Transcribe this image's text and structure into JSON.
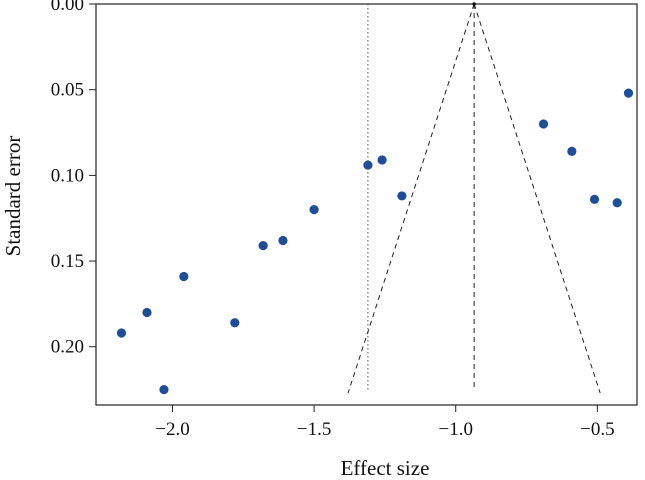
{
  "chart_data": {
    "type": "scatter",
    "title": "",
    "xlabel": "Effect size",
    "ylabel": "Standard error",
    "xlim": [
      -2.27,
      -0.36
    ],
    "ylim": [
      0.0,
      0.234
    ],
    "y_reversed": true,
    "x_ticks": [
      -2.0,
      -1.5,
      -1.0,
      -0.5
    ],
    "x_tick_labels": [
      "−2.0",
      "−1.5",
      "−1.0",
      "−0.5"
    ],
    "y_ticks": [
      0.0,
      0.05,
      0.1,
      0.15,
      0.2
    ],
    "y_tick_labels": [
      "0.00",
      "0.05",
      "0.10",
      "0.15",
      "0.20"
    ],
    "grid": false,
    "point_color": "#1f4e99",
    "series": [
      {
        "name": "studies",
        "points": [
          {
            "x": -2.18,
            "y": 0.192
          },
          {
            "x": -2.09,
            "y": 0.18
          },
          {
            "x": -2.03,
            "y": 0.225
          },
          {
            "x": -1.96,
            "y": 0.159
          },
          {
            "x": -1.78,
            "y": 0.186
          },
          {
            "x": -1.68,
            "y": 0.141
          },
          {
            "x": -1.61,
            "y": 0.138
          },
          {
            "x": -1.5,
            "y": 0.12
          },
          {
            "x": -1.31,
            "y": 0.094
          },
          {
            "x": -1.26,
            "y": 0.091
          },
          {
            "x": -1.19,
            "y": 0.112
          },
          {
            "x": -0.69,
            "y": 0.07
          },
          {
            "x": -0.59,
            "y": 0.086
          },
          {
            "x": -0.51,
            "y": 0.114
          },
          {
            "x": -0.43,
            "y": 0.116
          },
          {
            "x": -0.39,
            "y": 0.052
          }
        ]
      }
    ],
    "reference_lines": {
      "funnel_apex": {
        "x": -0.935,
        "y": 0.0
      },
      "funnel_left_base": {
        "x": -1.38,
        "y": 0.227
      },
      "funnel_right_base": {
        "x": -0.49,
        "y": 0.227
      },
      "center_line": {
        "x": -0.935,
        "y_from": 0.0,
        "y_to": 0.225
      },
      "dotted_line": {
        "x": -1.31,
        "y_from": 0.0,
        "y_to": 0.225
      }
    }
  }
}
